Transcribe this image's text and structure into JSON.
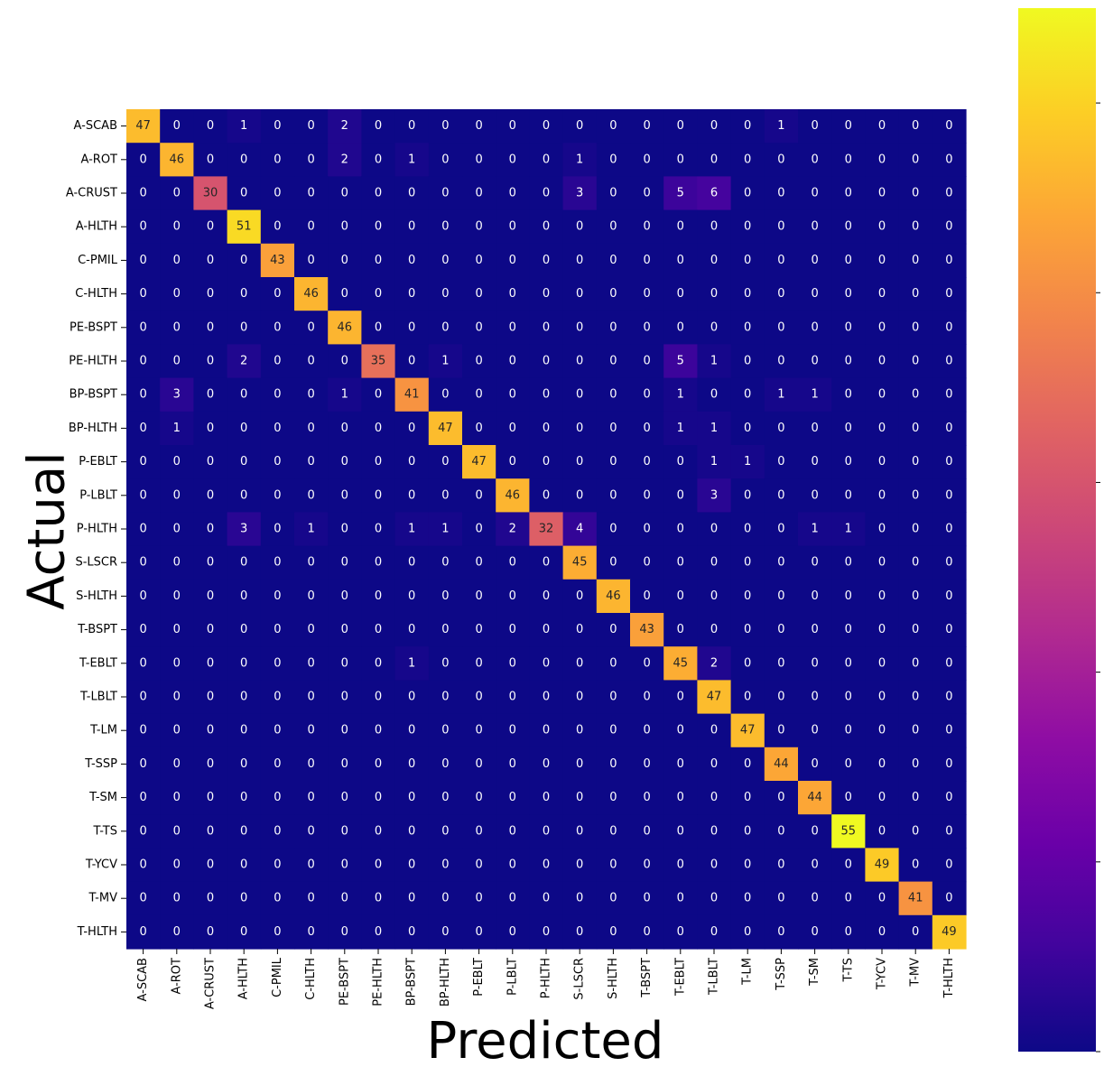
{
  "chart_data": {
    "type": "heatmap",
    "xlabel": "Predicted",
    "ylabel": "Actual",
    "labels": [
      "A-SCAB",
      "A-ROT",
      "A-CRUST",
      "A-HLTH",
      "C-PMIL",
      "C-HLTH",
      "PE-BSPT",
      "PE-HLTH",
      "BP-BSPT",
      "BP-HLTH",
      "P-EBLT",
      "P-LBLT",
      "P-HLTH",
      "S-LSCR",
      "S-HLTH",
      "T-BSPT",
      "T-EBLT",
      "T-LBLT",
      "T-LM",
      "T-SSP",
      "T-SM",
      "T-TS",
      "T-YCV",
      "T-MV",
      "T-HLTH"
    ],
    "matrix": [
      [
        47,
        0,
        0,
        1,
        0,
        0,
        2,
        0,
        0,
        0,
        0,
        0,
        0,
        0,
        0,
        0,
        0,
        0,
        0,
        1,
        0,
        0,
        0,
        0,
        0
      ],
      [
        0,
        46,
        0,
        0,
        0,
        0,
        2,
        0,
        1,
        0,
        0,
        0,
        0,
        1,
        0,
        0,
        0,
        0,
        0,
        0,
        0,
        0,
        0,
        0,
        0
      ],
      [
        0,
        0,
        30,
        0,
        0,
        0,
        0,
        0,
        0,
        0,
        0,
        0,
        0,
        3,
        0,
        0,
        5,
        6,
        0,
        0,
        0,
        0,
        0,
        0,
        0
      ],
      [
        0,
        0,
        0,
        51,
        0,
        0,
        0,
        0,
        0,
        0,
        0,
        0,
        0,
        0,
        0,
        0,
        0,
        0,
        0,
        0,
        0,
        0,
        0,
        0,
        0
      ],
      [
        0,
        0,
        0,
        0,
        43,
        0,
        0,
        0,
        0,
        0,
        0,
        0,
        0,
        0,
        0,
        0,
        0,
        0,
        0,
        0,
        0,
        0,
        0,
        0,
        0
      ],
      [
        0,
        0,
        0,
        0,
        0,
        46,
        0,
        0,
        0,
        0,
        0,
        0,
        0,
        0,
        0,
        0,
        0,
        0,
        0,
        0,
        0,
        0,
        0,
        0,
        0
      ],
      [
        0,
        0,
        0,
        0,
        0,
        0,
        46,
        0,
        0,
        0,
        0,
        0,
        0,
        0,
        0,
        0,
        0,
        0,
        0,
        0,
        0,
        0,
        0,
        0,
        0
      ],
      [
        0,
        0,
        0,
        2,
        0,
        0,
        0,
        35,
        0,
        1,
        0,
        0,
        0,
        0,
        0,
        0,
        5,
        1,
        0,
        0,
        0,
        0,
        0,
        0,
        0
      ],
      [
        0,
        3,
        0,
        0,
        0,
        0,
        1,
        0,
        41,
        0,
        0,
        0,
        0,
        0,
        0,
        0,
        1,
        0,
        0,
        1,
        1,
        0,
        0,
        0,
        0
      ],
      [
        0,
        1,
        0,
        0,
        0,
        0,
        0,
        0,
        0,
        47,
        0,
        0,
        0,
        0,
        0,
        0,
        1,
        1,
        0,
        0,
        0,
        0,
        0,
        0,
        0
      ],
      [
        0,
        0,
        0,
        0,
        0,
        0,
        0,
        0,
        0,
        0,
        47,
        0,
        0,
        0,
        0,
        0,
        0,
        1,
        1,
        0,
        0,
        0,
        0,
        0,
        0
      ],
      [
        0,
        0,
        0,
        0,
        0,
        0,
        0,
        0,
        0,
        0,
        0,
        46,
        0,
        0,
        0,
        0,
        0,
        3,
        0,
        0,
        0,
        0,
        0,
        0,
        0
      ],
      [
        0,
        0,
        0,
        3,
        0,
        1,
        0,
        0,
        1,
        1,
        0,
        2,
        32,
        4,
        0,
        0,
        0,
        0,
        0,
        0,
        1,
        1,
        0,
        0,
        0
      ],
      [
        0,
        0,
        0,
        0,
        0,
        0,
        0,
        0,
        0,
        0,
        0,
        0,
        0,
        45,
        0,
        0,
        0,
        0,
        0,
        0,
        0,
        0,
        0,
        0,
        0
      ],
      [
        0,
        0,
        0,
        0,
        0,
        0,
        0,
        0,
        0,
        0,
        0,
        0,
        0,
        0,
        46,
        0,
        0,
        0,
        0,
        0,
        0,
        0,
        0,
        0,
        0
      ],
      [
        0,
        0,
        0,
        0,
        0,
        0,
        0,
        0,
        0,
        0,
        0,
        0,
        0,
        0,
        0,
        43,
        0,
        0,
        0,
        0,
        0,
        0,
        0,
        0,
        0
      ],
      [
        0,
        0,
        0,
        0,
        0,
        0,
        0,
        0,
        1,
        0,
        0,
        0,
        0,
        0,
        0,
        0,
        45,
        2,
        0,
        0,
        0,
        0,
        0,
        0,
        0
      ],
      [
        0,
        0,
        0,
        0,
        0,
        0,
        0,
        0,
        0,
        0,
        0,
        0,
        0,
        0,
        0,
        0,
        0,
        47,
        0,
        0,
        0,
        0,
        0,
        0,
        0
      ],
      [
        0,
        0,
        0,
        0,
        0,
        0,
        0,
        0,
        0,
        0,
        0,
        0,
        0,
        0,
        0,
        0,
        0,
        0,
        47,
        0,
        0,
        0,
        0,
        0,
        0
      ],
      [
        0,
        0,
        0,
        0,
        0,
        0,
        0,
        0,
        0,
        0,
        0,
        0,
        0,
        0,
        0,
        0,
        0,
        0,
        0,
        44,
        0,
        0,
        0,
        0,
        0
      ],
      [
        0,
        0,
        0,
        0,
        0,
        0,
        0,
        0,
        0,
        0,
        0,
        0,
        0,
        0,
        0,
        0,
        0,
        0,
        0,
        0,
        44,
        0,
        0,
        0,
        0
      ],
      [
        0,
        0,
        0,
        0,
        0,
        0,
        0,
        0,
        0,
        0,
        0,
        0,
        0,
        0,
        0,
        0,
        0,
        0,
        0,
        0,
        0,
        55,
        0,
        0,
        0
      ],
      [
        0,
        0,
        0,
        0,
        0,
        0,
        0,
        0,
        0,
        0,
        0,
        0,
        0,
        0,
        0,
        0,
        0,
        0,
        0,
        0,
        0,
        0,
        49,
        0,
        0
      ],
      [
        0,
        0,
        0,
        0,
        0,
        0,
        0,
        0,
        0,
        0,
        0,
        0,
        0,
        0,
        0,
        0,
        0,
        0,
        0,
        0,
        0,
        0,
        0,
        41,
        0
      ],
      [
        0,
        0,
        0,
        0,
        0,
        0,
        0,
        0,
        0,
        0,
        0,
        0,
        0,
        0,
        0,
        0,
        0,
        0,
        0,
        0,
        0,
        0,
        0,
        0,
        49
      ]
    ],
    "colorscale": "plasma",
    "zlim": [
      0,
      55
    ],
    "colorbar_ticks": [
      0,
      10,
      20,
      30,
      40,
      50
    ],
    "grid": false,
    "annotations": true
  }
}
